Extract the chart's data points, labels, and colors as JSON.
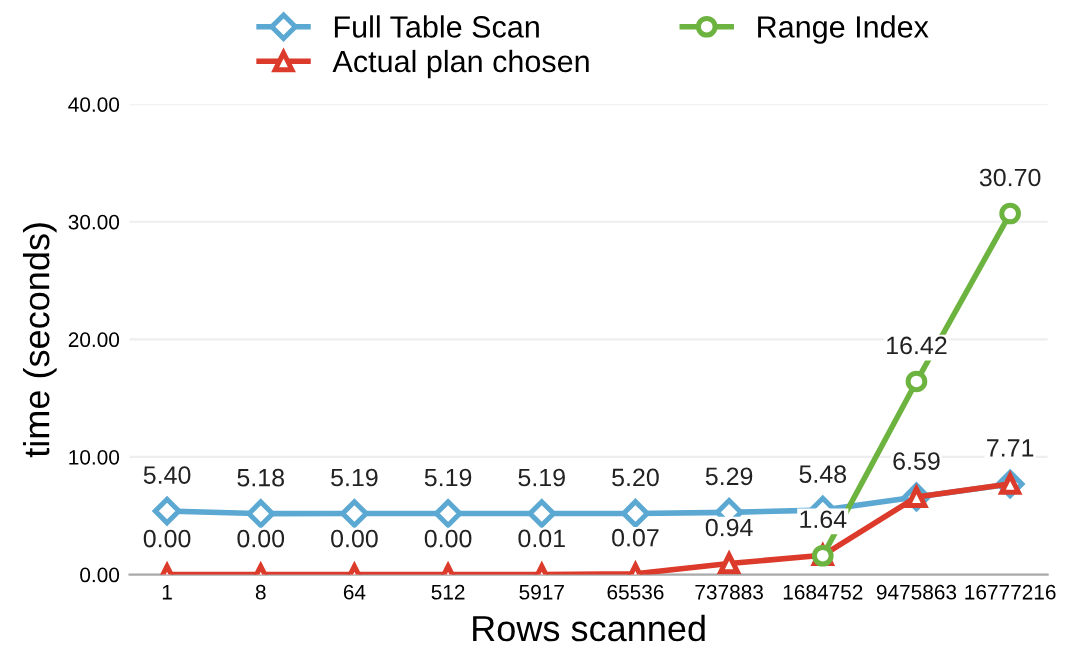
{
  "chart_data": {
    "type": "line",
    "xlabel": "Rows scanned",
    "ylabel": "time (seconds)",
    "categories": [
      "1",
      "8",
      "64",
      "512",
      "5917",
      "65536",
      "737883",
      "1684752",
      "9475863",
      "16777216"
    ],
    "series": [
      {
        "name": "Full Table Scan",
        "color": "#5ba8d2",
        "marker": "diamond",
        "values": [
          5.4,
          5.18,
          5.19,
          5.19,
          5.19,
          5.2,
          5.29,
          5.48,
          6.6,
          7.7
        ],
        "value_labels": [
          "5.40",
          "5.18",
          "5.19",
          "5.19",
          "5.19",
          "5.20",
          "5.29",
          "5.48",
          null,
          null
        ]
      },
      {
        "name": "Actual plan chosen",
        "color": "#dc3b2b",
        "marker": "triangle",
        "values": [
          0.0,
          0.0,
          0.0,
          0.0,
          0.01,
          0.07,
          0.94,
          1.64,
          6.59,
          7.71
        ],
        "value_labels": [
          "0.00",
          "0.00",
          "0.00",
          "0.00",
          "0.01",
          "0.07",
          "0.94",
          "1.64",
          "6.59",
          "7.71"
        ]
      },
      {
        "name": "Range Index",
        "color": "#6db33f",
        "marker": "circle",
        "values": [
          null,
          null,
          null,
          null,
          null,
          null,
          null,
          1.6,
          16.42,
          30.7
        ],
        "value_labels": [
          null,
          null,
          null,
          null,
          null,
          null,
          null,
          null,
          "16.42",
          "30.70"
        ]
      }
    ],
    "ylim": [
      0,
      40
    ],
    "yticks": [
      {
        "value": 0,
        "label": "0.00"
      },
      {
        "value": 10,
        "label": "10.00"
      },
      {
        "value": 20,
        "label": "20.00"
      },
      {
        "value": 30,
        "label": "30.00"
      },
      {
        "value": 40,
        "label": "40.00"
      }
    ],
    "grid": "y",
    "legend": "top",
    "line_style": "solid"
  }
}
